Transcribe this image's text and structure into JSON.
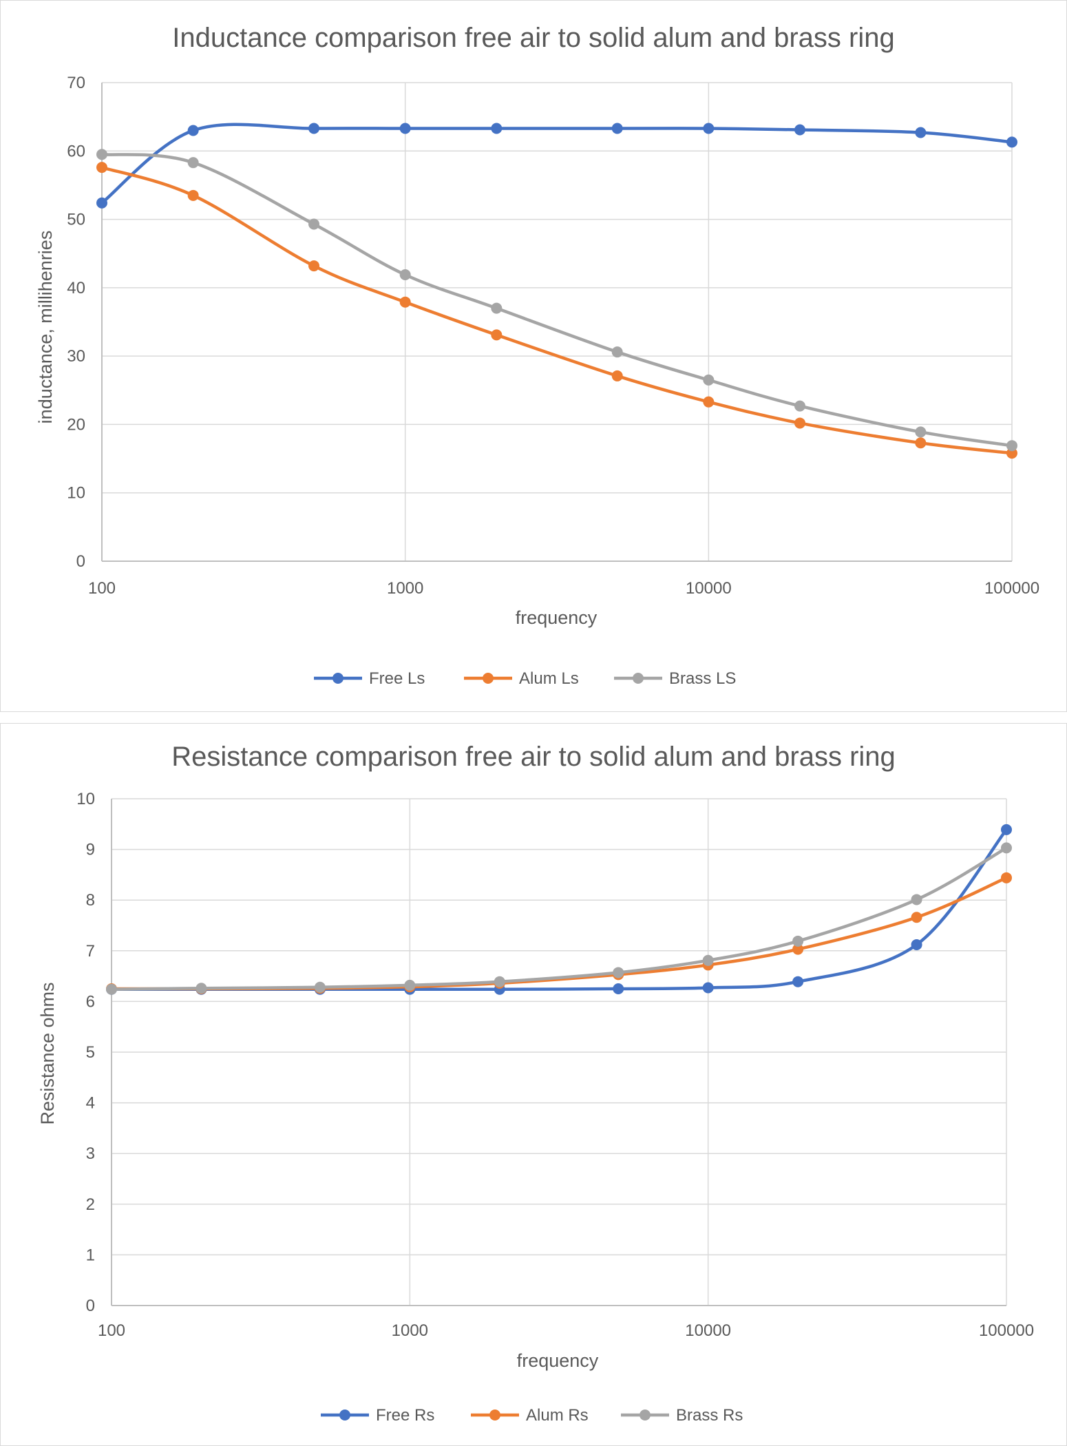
{
  "chart_data": [
    {
      "type": "line",
      "title": "Inductance comparison free air to solid alum and brass ring",
      "xlabel": "frequency",
      "ylabel": "inductance, millihenries",
      "x_scale": "log",
      "xlim": [
        100,
        100000
      ],
      "ylim": [
        0,
        70
      ],
      "y_ticks": [
        "0",
        "10",
        "20",
        "30",
        "40",
        "50",
        "60",
        "70"
      ],
      "x_ticks": [
        "100",
        "1000",
        "10000",
        "100000"
      ],
      "grid": true,
      "legend_position": "bottom",
      "x": [
        100,
        200,
        500,
        1000,
        2000,
        5000,
        10000,
        20000,
        50000,
        100000
      ],
      "series": [
        {
          "name": "Free Ls",
          "color": "#4472c4",
          "values": [
            52.4,
            63.0,
            63.3,
            63.3,
            63.3,
            63.3,
            63.3,
            63.1,
            62.7,
            61.3
          ]
        },
        {
          "name": "Alum Ls",
          "color": "#ed7d31",
          "values": [
            57.6,
            53.5,
            43.2,
            37.9,
            33.1,
            27.1,
            23.3,
            20.2,
            17.3,
            15.8
          ]
        },
        {
          "name": "Brass LS",
          "color": "#a5a5a5",
          "values": [
            59.5,
            58.3,
            49.3,
            41.9,
            37.0,
            30.6,
            26.5,
            22.7,
            18.9,
            16.9
          ]
        }
      ]
    },
    {
      "type": "line",
      "title": "Resistance comparison free air to solid alum and brass ring",
      "xlabel": "frequency",
      "ylabel": "Resistance ohms",
      "x_scale": "log",
      "xlim": [
        100,
        100000
      ],
      "ylim": [
        0,
        10
      ],
      "y_ticks": [
        "0",
        "1",
        "2",
        "3",
        "4",
        "5",
        "6",
        "7",
        "8",
        "9",
        "10"
      ],
      "x_ticks": [
        "100",
        "1000",
        "10000",
        "100000"
      ],
      "grid": true,
      "legend_position": "bottom",
      "x": [
        100,
        200,
        500,
        1000,
        2000,
        5000,
        10000,
        20000,
        50000,
        100000
      ],
      "series": [
        {
          "name": "Free Rs",
          "color": "#4472c4",
          "values": [
            6.24,
            6.24,
            6.24,
            6.24,
            6.24,
            6.25,
            6.27,
            6.39,
            7.12,
            9.39
          ]
        },
        {
          "name": "Alum Rs",
          "color": "#ed7d31",
          "values": [
            6.25,
            6.25,
            6.26,
            6.29,
            6.36,
            6.53,
            6.72,
            7.03,
            7.66,
            8.44
          ]
        },
        {
          "name": "Brass Rs",
          "color": "#a5a5a5",
          "values": [
            6.24,
            6.26,
            6.28,
            6.32,
            6.39,
            6.57,
            6.81,
            7.19,
            8.01,
            9.03
          ]
        }
      ]
    }
  ]
}
